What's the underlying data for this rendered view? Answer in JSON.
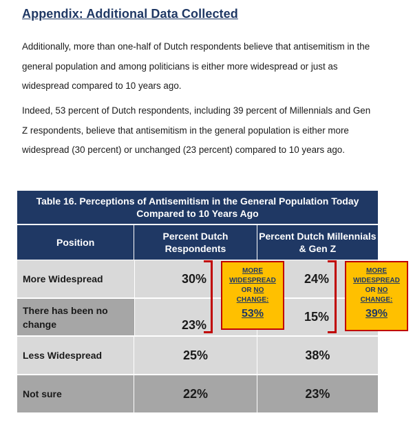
{
  "heading": "Appendix: Additional Data Collected",
  "paragraphs": [
    "Additionally, more than one-half of Dutch respondents believe that antisemitism in the general population and among politicians is either more widespread or just as widespread compared to 10 years ago.",
    "Indeed, 53 percent of Dutch respondents, including 39 percent of Millennials and Gen Z respondents, believe that antisemitism in the general population is either more widespread (30 percent) or unchanged (23 percent) compared to 10 years ago."
  ],
  "table": {
    "title": "Table 16. Perceptions of Antisemitism in the General Population Today Compared to 10 Years Ago",
    "headers": [
      "Position",
      "Percent Dutch Respondents",
      "Percent Dutch Millennials & Gen Z"
    ],
    "rows": [
      {
        "label": "More Widespread",
        "dutch": "30%",
        "gen": "24%"
      },
      {
        "label": "There has been no change",
        "dutch": "23%",
        "gen": "15%"
      },
      {
        "label": "Less Widespread",
        "dutch": "25%",
        "gen": "38%"
      },
      {
        "label": "Not sure",
        "dutch": "22%",
        "gen": "23%"
      }
    ]
  },
  "callouts": [
    {
      "line1": "MORE",
      "line2": "WIDESPREAD",
      "line3_a": "OR",
      "line3_b": "NO",
      "line4": "CHANGE:",
      "value": "53%"
    },
    {
      "line1": "MORE",
      "line2": "WIDESPREAD",
      "line3_a": "OR",
      "line3_b": "NO",
      "line4": "CHANGE:",
      "value": "39%"
    }
  ],
  "colors": {
    "header_navy": "#1f3864",
    "row_light": "#d9d9d9",
    "row_dark": "#a6a6a6",
    "callout_fill": "#ffc000",
    "callout_border": "#c00000"
  }
}
